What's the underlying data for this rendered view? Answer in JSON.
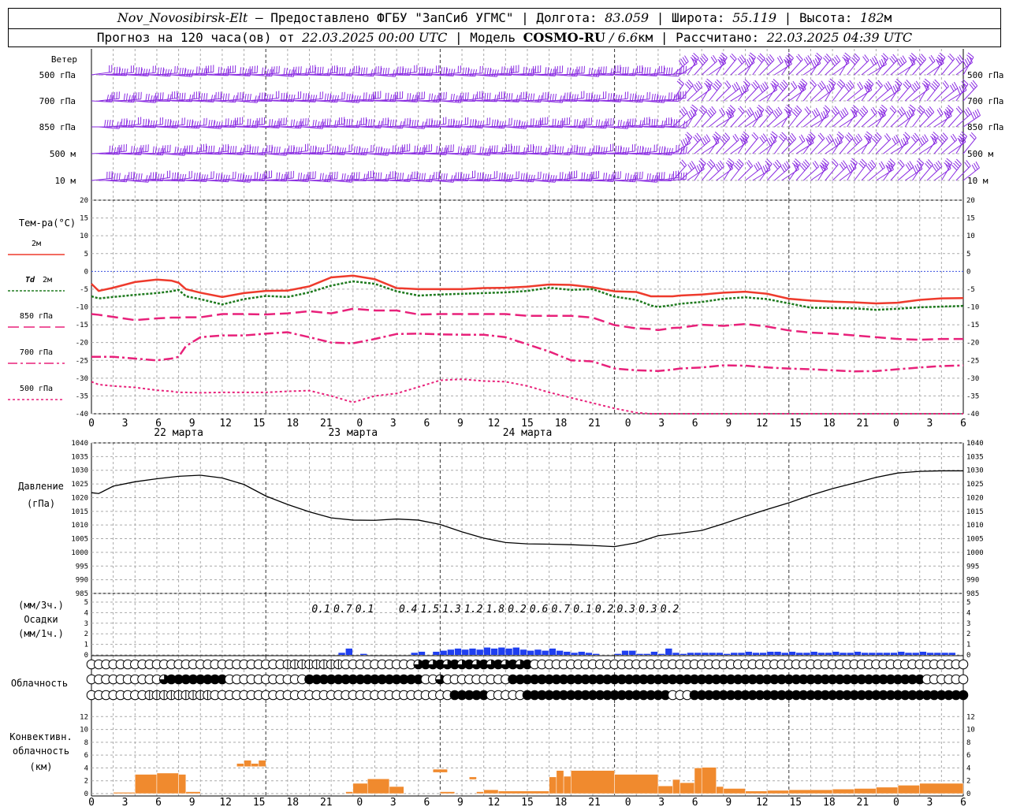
{
  "header": {
    "station": "Nov_Novosibirsk-Elt",
    "provided": " – Предоставлено ФГБУ \"ЗапСиб УГМС\" | Долгота: ",
    "lon": "83.059",
    "lat_label": " | Широта: ",
    "lat": "55.119",
    "alt_label": " | Высота: ",
    "alt": "182",
    "alt_unit": "м",
    "forecast_label": "Прогноз на 120 часа(ов) от ",
    "forecast_from": "22.03.2025 00:00 UTC",
    "model_label": " | Модель ",
    "model": "COSMO-RU",
    "model_res": " / 6.6",
    "model_res_unit": "км",
    "calc_label": " | Рассчитано: ",
    "calc_time": "22.03.2025 04:39 UTC"
  },
  "wind_panel": {
    "title": "Ветер",
    "levels": [
      "500 гПа",
      "700 гПа",
      "850 гПа",
      "500 м",
      "10 м"
    ],
    "barb_color": "#8a2be2"
  },
  "temp_panel": {
    "title": "Тем-ра(°C)",
    "legend": [
      {
        "pre": "",
        "label": "2м",
        "color": "#ee3a2c",
        "dash": ""
      },
      {
        "pre": "Td",
        "label": "2м",
        "color": "#1e7a1e",
        "dash": "3,2"
      },
      {
        "pre": "",
        "label": "850 гПа",
        "color": "#e8217a",
        "dash": "14,6"
      },
      {
        "pre": "",
        "label": "700 гПа",
        "color": "#e8217a",
        "dash": "12,4,3,4"
      },
      {
        "pre": "",
        "label": "500 гПа",
        "color": "#e8217a",
        "dash": "3,3"
      }
    ],
    "yticks": [
      "20",
      "15",
      "10",
      "5",
      "0",
      "-5",
      "-10",
      "-15",
      "-20",
      "-25",
      "-30",
      "-35",
      "-40"
    ]
  },
  "x_axis": {
    "hour_labels": [
      "0",
      "3",
      "6",
      "9",
      "12",
      "15",
      "18",
      "21",
      "0",
      "3",
      "6",
      "9",
      "12",
      "15",
      "18",
      "21",
      "0",
      "3",
      "6",
      "9",
      "12",
      "15",
      "18",
      "21",
      "0",
      "3",
      "6"
    ],
    "day_labels": [
      "22 марта",
      "23 марта",
      "24 марта"
    ]
  },
  "pressure_panel": {
    "title": "Давление",
    "unit": "(гПа)",
    "yticks": [
      "1040",
      "1035",
      "1030",
      "1025",
      "1020",
      "1015",
      "1010",
      "1005",
      "1000",
      "995",
      "990",
      "985"
    ]
  },
  "precip_panel": {
    "unit_top": "(мм/3ч.)",
    "title": "Осадки",
    "unit_bottom": "(мм/1ч.)",
    "yticks": [
      "5",
      "4",
      "3",
      "2",
      "1",
      "0"
    ],
    "bar_color": "#1f3ff0",
    "totals": [
      "0.1",
      "0.7",
      "0.1",
      "0.4",
      "1.5",
      "1.3",
      "1.2",
      "1.8",
      "0.2",
      "0.6",
      "0.7",
      "0.1",
      "0.2",
      "0.3",
      "0.3",
      "0.2"
    ]
  },
  "cloud_panel": {
    "title": "Облачность"
  },
  "conv_panel": {
    "title_1": "Конвективн.",
    "title_2": "облачность",
    "unit": "(км)",
    "yticks": [
      "12",
      "10",
      "8",
      "6",
      "4",
      "2",
      "0"
    ],
    "bar_color": "#f08a2e"
  },
  "chart_data": [
    {
      "type": "line",
      "title": "Тем-ра(°C)",
      "x_hours": [
        0,
        1,
        3,
        6,
        9,
        11,
        12,
        13,
        15,
        18,
        21,
        24,
        27,
        30,
        33,
        36,
        39,
        42,
        45,
        48,
        51,
        54,
        57,
        60,
        63,
        66,
        69,
        72,
        75,
        77,
        78,
        80,
        81,
        84,
        87,
        90,
        93,
        96,
        99,
        102,
        105,
        108,
        111,
        114,
        117,
        120
      ],
      "ylim": [
        -40,
        20
      ],
      "series": [
        {
          "name": "2м",
          "values": [
            -3.5,
            -5.5,
            -4.6,
            -3,
            -2.3,
            -2.6,
            -3.2,
            -5,
            -6,
            -7.2,
            -6.1,
            -5.5,
            -5.4,
            -4.2,
            -1.7,
            -1.2,
            -2.2,
            -4.7,
            -5,
            -5,
            -5,
            -4.7,
            -4.6,
            -4.3,
            -3.7,
            -3.8,
            -4.5,
            -5.6,
            -5.8,
            -7,
            -7,
            -7,
            -6.8,
            -6.5,
            -6,
            -5.7,
            -6.3,
            -7.7,
            -8.2,
            -8.5,
            -8.7,
            -9,
            -8.8,
            -8,
            -7.6,
            -7.5
          ]
        },
        {
          "name": "Td 2м",
          "values": [
            -7,
            -7.6,
            -7.2,
            -6.6,
            -6.1,
            -5.6,
            -5.2,
            -7,
            -7.8,
            -9.3,
            -7.8,
            -6.9,
            -7.2,
            -5.9,
            -4,
            -2.8,
            -3.5,
            -5.6,
            -6.8,
            -6.5,
            -6.3,
            -6.1,
            -5.9,
            -5.5,
            -4.6,
            -5.2,
            -5,
            -7.1,
            -8,
            -9.6,
            -10,
            -9.5,
            -9.1,
            -8.6,
            -7.7,
            -7.3,
            -7.8,
            -9,
            -10.2,
            -10.3,
            -10.4,
            -10.8,
            -10.5,
            -10.1,
            -9.9,
            -9.7
          ]
        },
        {
          "name": "850 гПа",
          "values": [
            -12,
            -12.2,
            -12.8,
            -13.7,
            -13.2,
            -13,
            -13,
            -12.9,
            -12.9,
            -12,
            -12,
            -12.1,
            -11.8,
            -11.2,
            -11.8,
            -10.5,
            -11,
            -11,
            -12.1,
            -12,
            -12,
            -12,
            -12,
            -12.5,
            -12.5,
            -12.5,
            -13,
            -15.1,
            -16,
            -16.2,
            -16.5,
            -15.9,
            -15.8,
            -15,
            -15.3,
            -14.8,
            -15.5,
            -16.6,
            -17.2,
            -17.5,
            -18,
            -18.5,
            -19,
            -19.2,
            -19,
            -19
          ]
        },
        {
          "name": "700 гПа",
          "values": [
            -24,
            -24,
            -24,
            -24.5,
            -25,
            -24.5,
            -24,
            -21,
            -18.5,
            -18,
            -18,
            -17.5,
            -17.1,
            -18.5,
            -20,
            -20.2,
            -19,
            -17.6,
            -17.5,
            -17.7,
            -17.8,
            -17.8,
            -18.5,
            -20.5,
            -22.5,
            -25,
            -25.3,
            -27.3,
            -27.8,
            -27.9,
            -28,
            -27.6,
            -27.3,
            -27,
            -26.4,
            -26.5,
            -27,
            -27.3,
            -27.5,
            -27.8,
            -28.1,
            -28,
            -27.5,
            -27,
            -26.6,
            -26.4
          ]
        },
        {
          "name": "500 гПа",
          "values": [
            -31,
            -31.8,
            -32.2,
            -32.6,
            -33.4,
            -33.7,
            -34,
            -34,
            -34.1,
            -34,
            -34,
            -34,
            -33.7,
            -33.5,
            -35,
            -36.8,
            -35,
            -34.3,
            -32.5,
            -30.6,
            -30.3,
            -30.8,
            -31,
            -32.2,
            -34,
            -35.5,
            -37,
            -38.5,
            -39.7,
            -40.4,
            -40.5,
            -40.5,
            -40.5,
            -40.5,
            -40.5,
            -40.5,
            -40.5,
            -40.5,
            -40.5,
            -40.5,
            -40.5,
            -40.5,
            -40.5,
            -40.5,
            -40.5,
            -40.5
          ]
        }
      ]
    },
    {
      "type": "line",
      "title": "Давление",
      "ylabel": "(гПа)",
      "x_hours": [
        0,
        1,
        3,
        6,
        9,
        12,
        15,
        18,
        21,
        24,
        27,
        30,
        33,
        36,
        39,
        42,
        45,
        48,
        51,
        54,
        57,
        60,
        63,
        66,
        69,
        72,
        75,
        78,
        81,
        84,
        87,
        90,
        93,
        96,
        99,
        102,
        105,
        108,
        111,
        114,
        117,
        120
      ],
      "ylim": [
        985,
        1040
      ],
      "series": [
        {
          "name": "Давление",
          "values": [
            1021.8,
            1021.5,
            1024.2,
            1025.8,
            1026.9,
            1027.8,
            1028.2,
            1027.2,
            1024.8,
            1020.6,
            1017.5,
            1014.8,
            1012.6,
            1011.8,
            1011.7,
            1012.2,
            1011.8,
            1010.2,
            1007.5,
            1005.2,
            1003.6,
            1003.1,
            1003,
            1002.8,
            1002.5,
            1002.1,
            1003.5,
            1006.1,
            1007,
            1008,
            1010.5,
            1013.2,
            1015.7,
            1018.1,
            1020.9,
            1023.3,
            1025.3,
            1027.4,
            1029,
            1029.6,
            1029.8,
            1029.8
          ]
        }
      ]
    },
    {
      "type": "bar",
      "title": "Осадки",
      "ylabel": "(мм/1ч.)",
      "ylim": [
        0,
        5
      ],
      "x_hours": [
        35,
        36,
        38,
        45,
        46,
        48,
        49,
        50,
        51,
        52,
        53,
        54,
        55,
        56,
        57,
        58,
        59,
        60,
        61,
        62,
        63,
        64,
        65,
        66,
        67,
        68,
        69,
        70,
        73,
        74,
        75,
        76,
        77,
        78,
        79,
        80,
        81,
        82,
        83,
        84,
        85,
        86,
        87,
        88,
        89,
        90,
        91,
        92,
        93,
        94,
        95,
        96,
        97,
        98,
        99,
        100,
        101,
        102,
        103,
        104,
        105,
        106,
        107,
        108,
        109,
        110,
        111,
        112,
        113,
        114,
        115,
        116,
        117,
        118,
        119
      ],
      "values": [
        0.2,
        0.6,
        0.1,
        0.2,
        0.3,
        0.3,
        0.4,
        0.5,
        0.6,
        0.5,
        0.6,
        0.5,
        0.7,
        0.6,
        0.7,
        0.6,
        0.7,
        0.5,
        0.4,
        0.5,
        0.4,
        0.6,
        0.4,
        0.3,
        0.2,
        0.3,
        0.2,
        0.1,
        0.1,
        0.4,
        0.4,
        0.1,
        0.1,
        0.3,
        0.1,
        0.6,
        0.2,
        0.1,
        0.2,
        0.2,
        0.2,
        0.2,
        0.2,
        0.1,
        0.2,
        0.2,
        0.3,
        0.2,
        0.2,
        0.3,
        0.3,
        0.2,
        0.3,
        0.2,
        0.2,
        0.3,
        0.2,
        0.2,
        0.3,
        0.2,
        0.2,
        0.3,
        0.2,
        0.2,
        0.2,
        0.2,
        0.2,
        0.3,
        0.2,
        0.2,
        0.3,
        0.2,
        0.2,
        0.2,
        0.2
      ]
    },
    {
      "type": "bar",
      "title": "Конвективн. облачность",
      "ylabel": "(км)",
      "ylim": [
        0,
        14
      ],
      "bars": [
        {
          "x0": 3,
          "x1": 6,
          "bottom": 0,
          "top": 0.2
        },
        {
          "x0": 6,
          "x1": 9,
          "bottom": 0,
          "top": 3
        },
        {
          "x0": 9,
          "x1": 12,
          "bottom": 0,
          "top": 3.2
        },
        {
          "x0": 12,
          "x1": 13,
          "bottom": 0,
          "top": 3
        },
        {
          "x0": 13,
          "x1": 15,
          "bottom": 0,
          "top": 0.3
        },
        {
          "x0": 20,
          "x1": 21,
          "bottom": 4.2,
          "top": 4.7
        },
        {
          "x0": 21,
          "x1": 22,
          "bottom": 4.2,
          "top": 5.2
        },
        {
          "x0": 22,
          "x1": 23,
          "bottom": 4.2,
          "top": 4.7
        },
        {
          "x0": 23,
          "x1": 24,
          "bottom": 4.2,
          "top": 5.2
        },
        {
          "x0": 35,
          "x1": 36,
          "bottom": 0,
          "top": 0.3
        },
        {
          "x0": 36,
          "x1": 38,
          "bottom": 0,
          "top": 1.6
        },
        {
          "x0": 38,
          "x1": 41,
          "bottom": 0,
          "top": 2.3
        },
        {
          "x0": 41,
          "x1": 43,
          "bottom": 0,
          "top": 1.1
        },
        {
          "x0": 47,
          "x1": 49,
          "bottom": 3.3,
          "top": 3.8
        },
        {
          "x0": 48,
          "x1": 50,
          "bottom": 0,
          "top": 0.3
        },
        {
          "x0": 52,
          "x1": 53,
          "bottom": 2.2,
          "top": 2.6
        },
        {
          "x0": 53,
          "x1": 54,
          "bottom": 0,
          "top": 0.3
        },
        {
          "x0": 54,
          "x1": 56,
          "bottom": 0,
          "top": 0.6
        },
        {
          "x0": 56,
          "x1": 63,
          "bottom": 0,
          "top": 0.4
        },
        {
          "x0": 63,
          "x1": 64,
          "bottom": 0,
          "top": 2.6
        },
        {
          "x0": 64,
          "x1": 65,
          "bottom": 0,
          "top": 3.6
        },
        {
          "x0": 65,
          "x1": 66,
          "bottom": 0,
          "top": 2.7
        },
        {
          "x0": 66,
          "x1": 72,
          "bottom": 0,
          "top": 3.6
        },
        {
          "x0": 72,
          "x1": 78,
          "bottom": 0,
          "top": 3
        },
        {
          "x0": 78,
          "x1": 80,
          "bottom": 0,
          "top": 1.2
        },
        {
          "x0": 80,
          "x1": 81,
          "bottom": 0,
          "top": 2.2
        },
        {
          "x0": 81,
          "x1": 83,
          "bottom": 0,
          "top": 1.7
        },
        {
          "x0": 83,
          "x1": 84,
          "bottom": 0,
          "top": 4
        },
        {
          "x0": 84,
          "x1": 86,
          "bottom": 0,
          "top": 4.1
        },
        {
          "x0": 86,
          "x1": 87,
          "bottom": 0,
          "top": 1.1
        },
        {
          "x0": 87,
          "x1": 90,
          "bottom": 0,
          "top": 0.8
        },
        {
          "x0": 90,
          "x1": 93,
          "bottom": 0,
          "top": 0.4
        },
        {
          "x0": 93,
          "x1": 96,
          "bottom": 0,
          "top": 0.5
        },
        {
          "x0": 96,
          "x1": 102,
          "bottom": 0,
          "top": 0.6
        },
        {
          "x0": 102,
          "x1": 105,
          "bottom": 0,
          "top": 0.7
        },
        {
          "x0": 105,
          "x1": 108,
          "bottom": 0,
          "top": 0.8
        },
        {
          "x0": 108,
          "x1": 111,
          "bottom": 0,
          "top": 1
        },
        {
          "x0": 111,
          "x1": 114,
          "bottom": 0,
          "top": 1.3
        },
        {
          "x0": 114,
          "x1": 120,
          "bottom": 0,
          "top": 1.6
        }
      ]
    }
  ]
}
